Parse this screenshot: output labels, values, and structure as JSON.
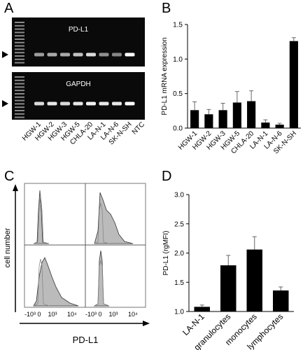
{
  "panel_a": {
    "panel_label": "A",
    "gels": [
      "PD-L1",
      "GAPDH"
    ],
    "lanes": [
      "HGW-1",
      "HGW-2",
      "HGW-3",
      "HGW-5",
      "CHLA-20",
      "LA-N-1",
      "LA-N-6",
      "SK-N-SH",
      "NTC"
    ]
  },
  "chart_data": [
    {
      "type": "bar",
      "panel_label": "B",
      "ylabel": "PD-L1 mRNA expression",
      "categories": [
        "HGW-1",
        "HGW-2",
        "HGW-3",
        "HGW-5",
        "CHLA-20",
        "LA-N-1",
        "LA-N-6",
        "SK-N-SH"
      ],
      "values": [
        0.26,
        0.2,
        0.26,
        0.37,
        0.39,
        0.08,
        0.05,
        1.26
      ],
      "errors": [
        0.12,
        0.07,
        0.1,
        0.16,
        0.15,
        0.04,
        0.02,
        0.05
      ],
      "color": "#000000",
      "ylim": [
        0,
        1.5
      ],
      "yticks": [
        {
          "value": 0,
          "label": "0.0"
        },
        {
          "value": 0.5,
          "label": "0.5"
        },
        {
          "value": 1,
          "label": "1.0"
        },
        {
          "value": 1.5,
          "label": "1.5"
        }
      ]
    },
    {
      "type": "bar",
      "panel_label": "D",
      "ylabel": "PD-L1 (rgMFI)",
      "categories": [
        "LA-N-1",
        "granulocytes",
        "monocytes",
        "lymphocytes"
      ],
      "values": [
        1.08,
        1.79,
        2.06,
        1.36
      ],
      "errors": [
        0.03,
        0.17,
        0.22,
        0.06
      ],
      "color": "#000000",
      "ylim": [
        1,
        3
      ],
      "yticks": [
        {
          "value": 1,
          "label": "1.0"
        },
        {
          "value": 1.5,
          "label": "1.5"
        },
        {
          "value": 2,
          "label": "2.0"
        },
        {
          "value": 2.5,
          "label": "2.5"
        },
        {
          "value": 3,
          "label": "3.0"
        }
      ]
    }
  ],
  "panel_c": {
    "panel_label": "C",
    "ylabel": "cell number",
    "xlabel": "PD-L1",
    "x_tick_labels": [
      "-10³",
      "0",
      "10³",
      "10⁴"
    ]
  }
}
